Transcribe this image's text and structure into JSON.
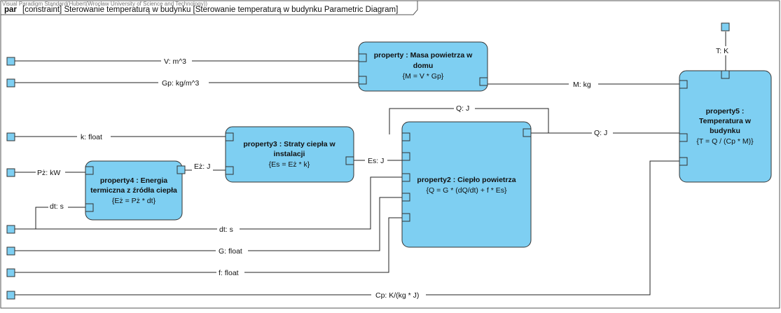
{
  "frame": {
    "keyword": "par",
    "title": "[constraint] Sterowanie temperaturą w budynku [Sterowanie temperaturą w budynku Parametric Diagram]",
    "watermark": "Visual Paradigm Standard(Hubert(Wrocław University of Science and Technology))"
  },
  "blocks": {
    "masa": {
      "title_lines": [
        "property : Masa powietrza w",
        "domu"
      ],
      "constraint": "{M = V * Gp}"
    },
    "straty": {
      "title_lines": [
        "property3 : Straty ciepła w",
        "instalacji"
      ],
      "constraint": "{Es = Eż * k}"
    },
    "energia": {
      "title_lines": [
        "property4 : Energia",
        "termiczna z źródła ciepła"
      ],
      "constraint": "{Eż = Pż * dt}"
    },
    "cieplo": {
      "title_lines": [
        "property2 : Ciepło powietrza"
      ],
      "constraint": "{Q = G * (dQ/dt) + f * Es}"
    },
    "temperatura": {
      "title_lines": [
        "property5 :",
        "Temperatura w",
        "budynku"
      ],
      "constraint": "{T = Q / (Cp * M)}"
    }
  },
  "labels": {
    "v": "V: m^3",
    "gp": "Gp: kg/m^3",
    "k": "k: float",
    "pz": "Pż: kW",
    "dt_top": "dt: s",
    "ez": "Eż: J",
    "es": "Es: J",
    "q_top": "Q: J",
    "q_right": "Q: J",
    "m": "M: kg",
    "dt_bottom": "dt: s",
    "g": "G: float",
    "f": "f: float",
    "cp": "Cp: K/(kg * J)",
    "t": "T: K"
  }
}
